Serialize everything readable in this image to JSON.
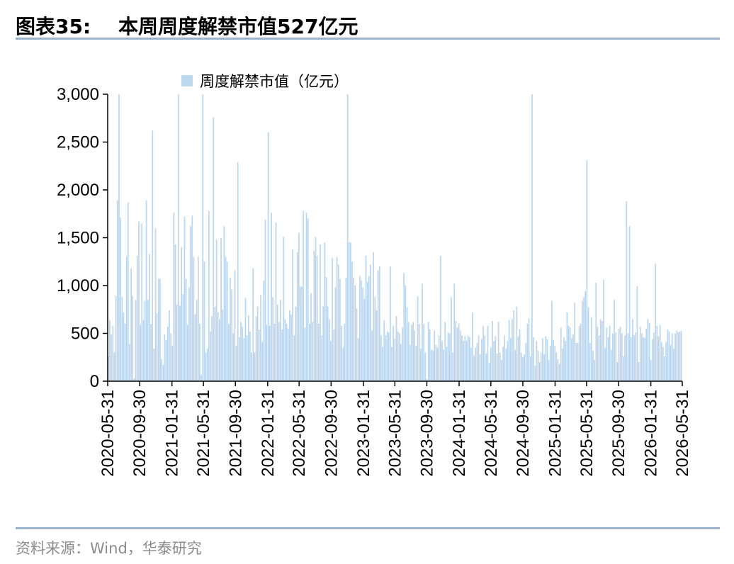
{
  "figure": {
    "label": "图表35:",
    "title": "本周周度解禁市值527亿元",
    "source": "资料来源：Wind，华泰研究"
  },
  "chart_data": {
    "type": "bar",
    "legend": "周度解禁市值（亿元）",
    "legend_position": "top-center",
    "grid": false,
    "color": "#bdd7ee",
    "ylim": [
      0,
      3000
    ],
    "yticks": [
      "0",
      "500",
      "1,000",
      "1,500",
      "2,000",
      "2,500",
      "3,000"
    ],
    "ytick_values": [
      0,
      500,
      1000,
      1500,
      2000,
      2500,
      3000
    ],
    "xlim": [
      "2020-05-31",
      "2026-05-31"
    ],
    "xticks": [
      "2020-05-31",
      "2020-09-30",
      "2021-01-31",
      "2021-05-31",
      "2021-09-30",
      "2022-01-31",
      "2022-05-31",
      "2022-09-30",
      "2023-01-31",
      "2023-05-31",
      "2023-09-30",
      "2024-01-31",
      "2024-05-31",
      "2024-09-30",
      "2025-01-31",
      "2025-05-31",
      "2025-09-30",
      "2026-01-31",
      "2026-05-31"
    ],
    "values": [
      260,
      640,
      490,
      580,
      300,
      890,
      1890,
      3000,
      1710,
      880,
      720,
      600,
      1300,
      1870,
      390,
      1180,
      890,
      30,
      850,
      1310,
      1670,
      590,
      1650,
      640,
      840,
      1890,
      850,
      1330,
      600,
      2620,
      340,
      1600,
      710,
      1070,
      1070,
      230,
      170,
      490,
      430,
      570,
      740,
      500,
      370,
      1760,
      1430,
      800,
      3000,
      790,
      1400,
      910,
      1720,
      1070,
      590,
      980,
      1620,
      1730,
      1300,
      700,
      850,
      1300,
      600,
      70,
      3000,
      1250,
      300,
      340,
      1780,
      520,
      680,
      2760,
      780,
      1480,
      720,
      650,
      1500,
      750,
      1620,
      1300,
      1250,
      600,
      1080,
      960,
      500,
      1160,
      370,
      2290,
      460,
      620,
      570,
      450,
      870,
      480,
      690,
      520,
      300,
      1180,
      300,
      680,
      780,
      540,
      900,
      410,
      1050,
      1690,
      590,
      2600,
      580,
      1760,
      880,
      600,
      1660,
      800,
      620,
      850,
      540,
      1510,
      650,
      600,
      550,
      740,
      700,
      1380,
      480,
      780,
      1350,
      1550,
      990,
      990,
      1780,
      560,
      1760,
      1700,
      600,
      920,
      620,
      1360,
      1510,
      1310,
      600,
      1430,
      480,
      780,
      1450,
      1090,
      780,
      650,
      420,
      1290,
      540,
      980,
      1300,
      1220,
      1070,
      580,
      350,
      600,
      1080,
      3000,
      1450,
      1450,
      1250,
      1080,
      1000,
      760,
      450,
      1100,
      1050,
      980,
      860,
      1310,
      1040,
      1100,
      1220,
      530,
      1350,
      880,
      740,
      1160,
      1200,
      480,
      360,
      640,
      480,
      520,
      510,
      1200,
      360,
      580,
      440,
      680,
      520,
      500,
      390,
      560,
      1130,
      1000,
      770,
      620,
      380,
      590,
      620,
      530,
      370,
      890,
      600,
      340,
      1020,
      600,
      300,
      20,
      620,
      540,
      330,
      320,
      530,
      380,
      350,
      480,
      1310,
      420,
      330,
      620,
      360,
      510,
      500,
      880,
      300,
      1020,
      630,
      560,
      600,
      530,
      480,
      420,
      470,
      420,
      480,
      460,
      350,
      720,
      270,
      350,
      400,
      480,
      280,
      440,
      580,
      480,
      290,
      580,
      190,
      350,
      630,
      420,
      470,
      290,
      620,
      300,
      220,
      360,
      480,
      340,
      420,
      640,
      450,
      650,
      740,
      330,
      780,
      470,
      540,
      300,
      250,
      280,
      400,
      600,
      660,
      260,
      3000,
      460,
      160,
      420,
      320,
      200,
      300,
      450,
      280,
      470,
      440,
      220,
      370,
      840,
      430,
      370,
      300,
      230,
      180,
      560,
      340,
      460,
      420,
      720,
      580,
      560,
      450,
      490,
      820,
      400,
      400,
      580,
      600,
      840,
      880,
      940,
      2310,
      770,
      400,
      670,
      320,
      220,
      1030,
      570,
      480,
      650,
      630,
      1060,
      350,
      560,
      460,
      580,
      330,
      500,
      850,
      510,
      200,
      550,
      570,
      500,
      260,
      480,
      1880,
      500,
      1620,
      460,
      650,
      480,
      510,
      990,
      200,
      570,
      500,
      460,
      450,
      550,
      650,
      610,
      220,
      440,
      510,
      1230,
      580,
      470,
      590,
      410,
      360,
      260,
      410,
      540,
      520,
      380,
      500,
      340,
      500,
      530,
      510,
      520,
      527
    ]
  }
}
